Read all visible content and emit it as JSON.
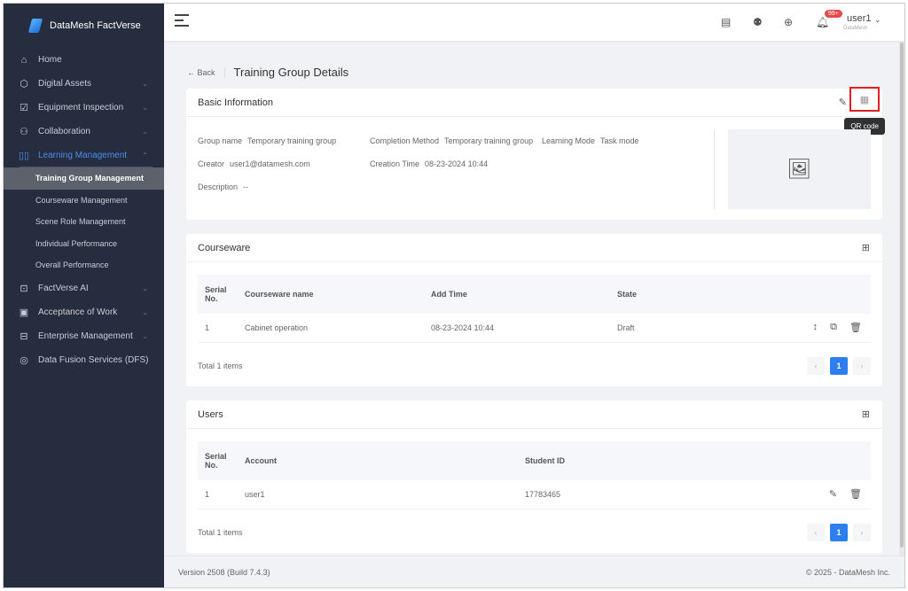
{
  "app": {
    "name": "DataMesh FactVerse"
  },
  "sidebar": {
    "items": [
      {
        "label": "Home",
        "icon": "home-icon"
      },
      {
        "label": "Digital Assets",
        "icon": "cube-icon"
      },
      {
        "label": "Equipment Inspection",
        "icon": "checklist-icon"
      },
      {
        "label": "Collaboration",
        "icon": "users-icon"
      },
      {
        "label": "Learning Management",
        "icon": "book-icon"
      },
      {
        "label": "FactVerse AI",
        "icon": "ai-icon"
      },
      {
        "label": "Acceptance of Work",
        "icon": "calendar-icon"
      },
      {
        "label": "Enterprise Management",
        "icon": "briefcase-icon"
      },
      {
        "label": "Data Fusion Services (DFS)",
        "icon": "fusion-icon"
      }
    ],
    "sub": [
      "Training Group Management",
      "Courseware Management",
      "Scene Role Management",
      "Individual Performance",
      "Overall Performance"
    ]
  },
  "header": {
    "badge": "99+",
    "user": "user1",
    "org": "DataMesh"
  },
  "page": {
    "back": "Back",
    "title": "Training Group Details"
  },
  "basic": {
    "title": "Basic Information",
    "tooltip": "QR code",
    "group_name_label": "Group name",
    "group_name": "Temporary training group",
    "completion_label": "Completion Method",
    "completion": "Temporary training group",
    "mode_label": "Learning Mode",
    "mode": "Task mode",
    "creator_label": "Creator",
    "creator": "user1@datamesh.com",
    "ctime_label": "Creation Time",
    "ctime": "08-23-2024 10:44",
    "desc_label": "Description",
    "desc": "--"
  },
  "courseware": {
    "title": "Courseware",
    "headers": [
      "Serial No.",
      "Courseware name",
      "Add Time",
      "State"
    ],
    "rows": [
      [
        "1",
        "Cabinet operation",
        "08-23-2024 10:44",
        "Draft"
      ]
    ],
    "total": "Total 1 items",
    "page": "1"
  },
  "users": {
    "title": "Users",
    "headers": [
      "Serial No.",
      "Account",
      "Student ID"
    ],
    "rows": [
      [
        "1",
        "user1",
        "17783465"
      ]
    ],
    "total": "Total 1 items",
    "page": "1"
  },
  "footer": {
    "version": "Version 2508 (Build 7.4.3)",
    "copyright": "© 2025 - DataMesh Inc."
  }
}
